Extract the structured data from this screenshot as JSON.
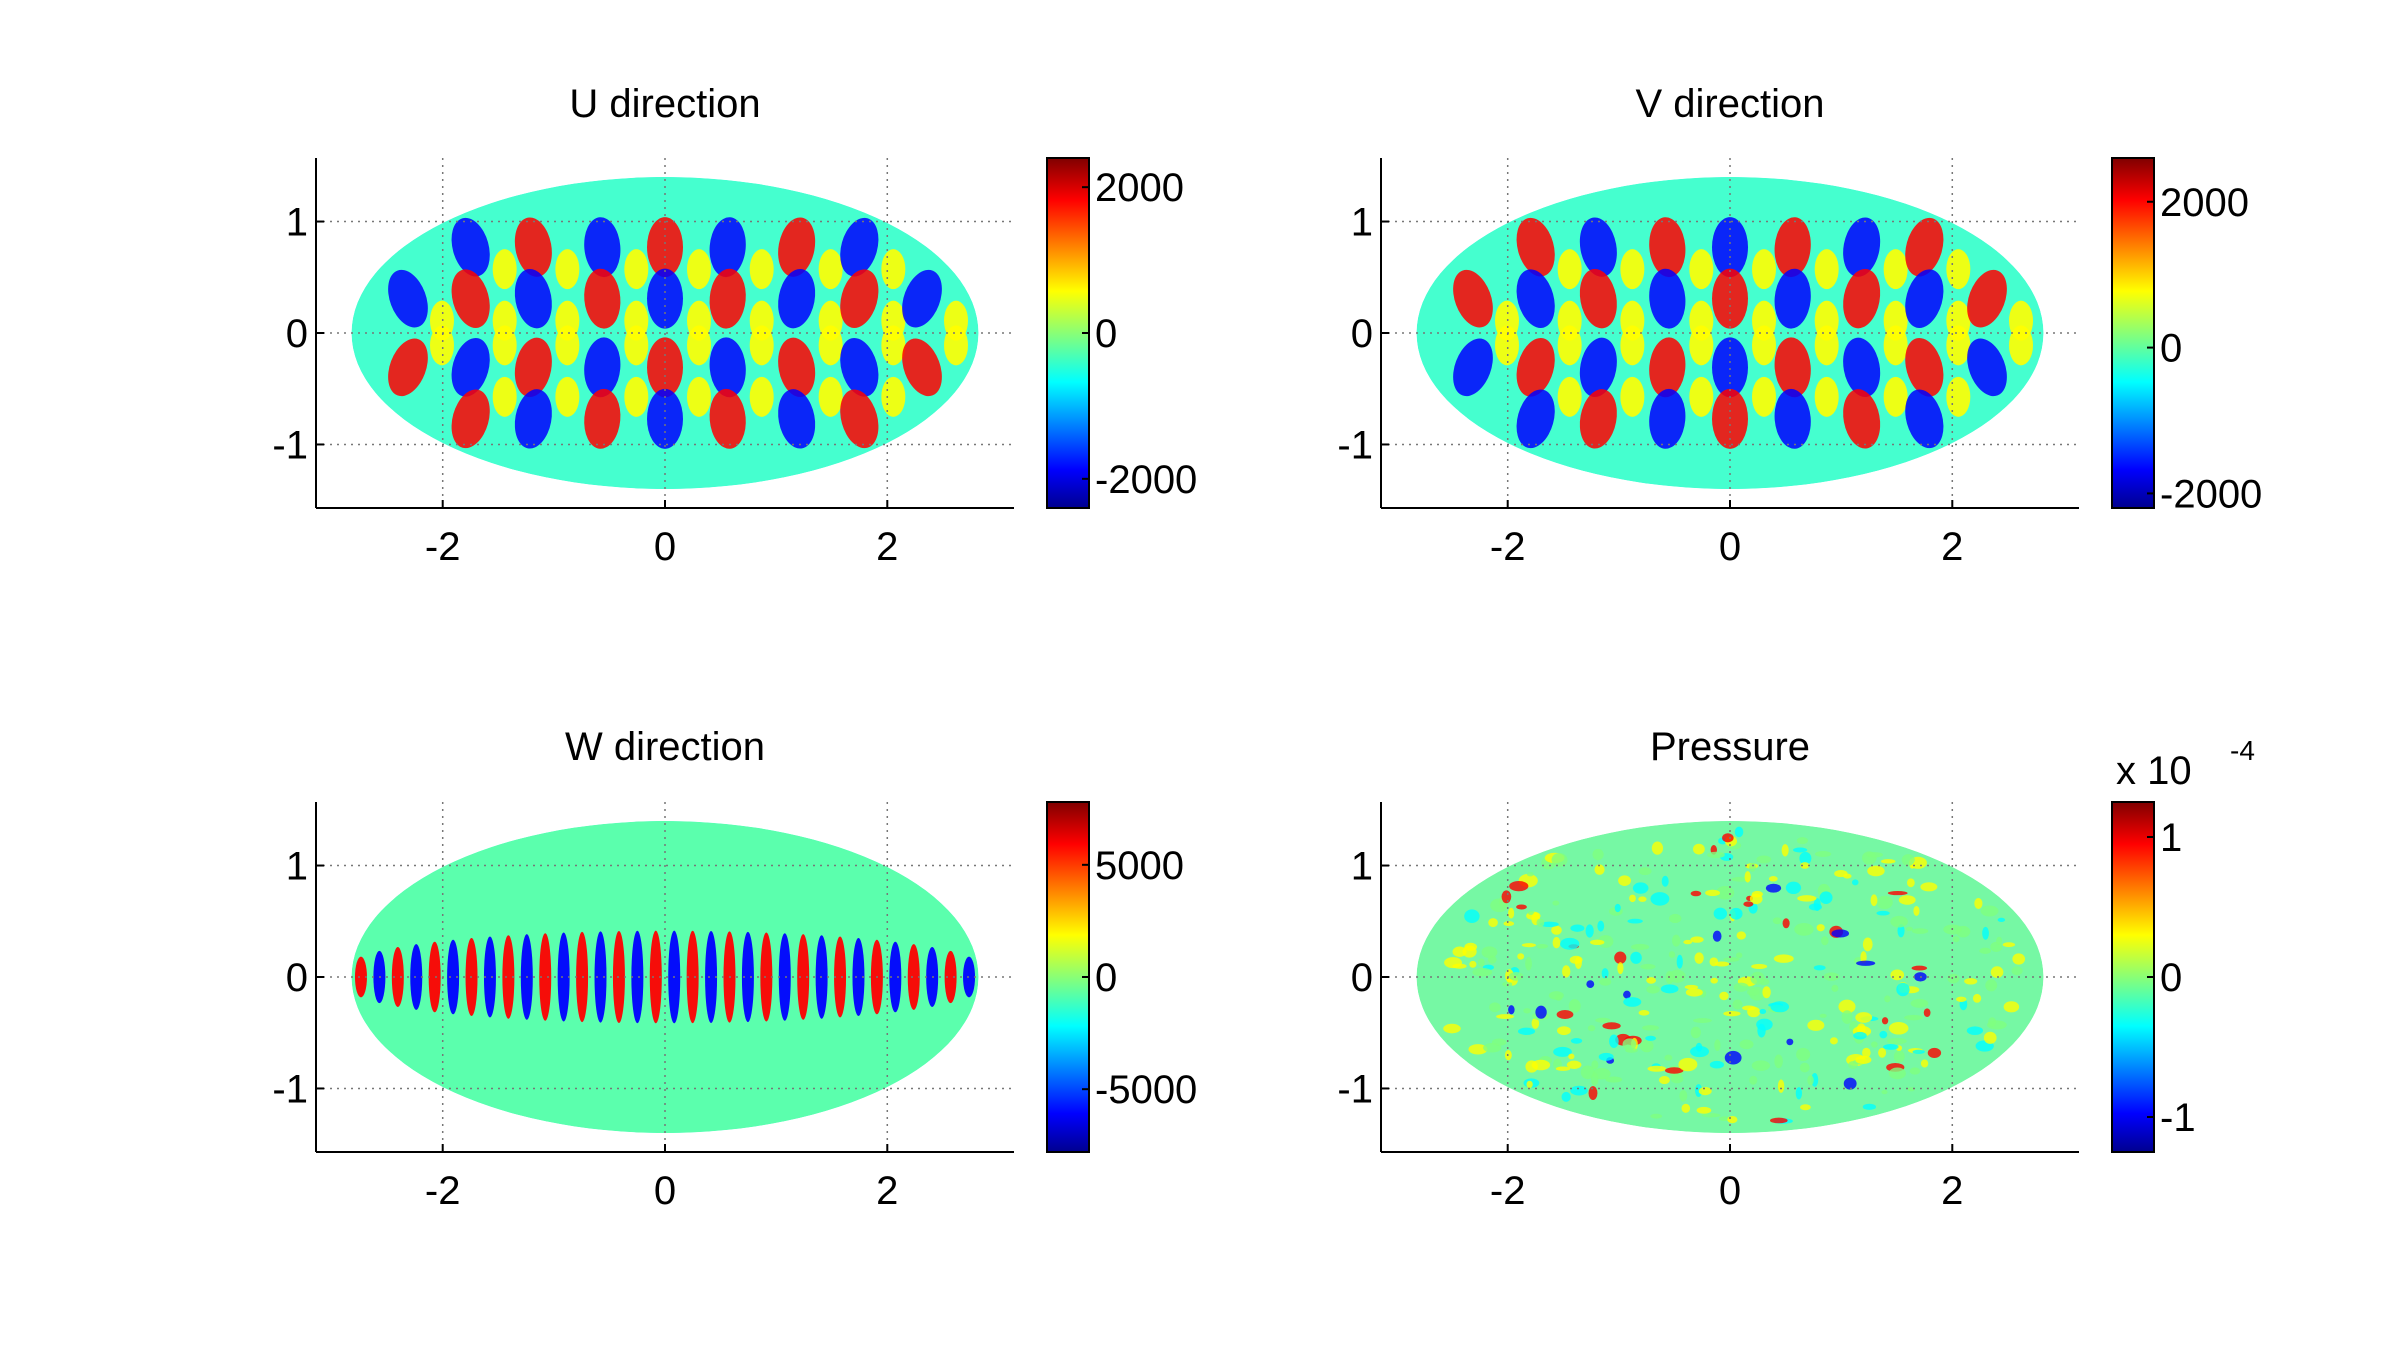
{
  "chart_data": [
    {
      "type": "heatmap",
      "title": "U direction",
      "xlabel": "",
      "ylabel": "",
      "xlim": [
        -3.14,
        3.14
      ],
      "ylim": [
        -1.57,
        1.57
      ],
      "xticks": [
        -2,
        0,
        2
      ],
      "yticks": [
        -1,
        0,
        1
      ],
      "xtick_labels": [
        "-2",
        "0",
        "2"
      ],
      "ytick_labels": [
        "-1",
        "0",
        "1"
      ],
      "grid": true,
      "projection": "Hammer-Aitoff ellipse",
      "colormap": "jet",
      "colorbar": {
        "range": [
          -2400,
          2400
        ],
        "ticks": [
          -2000,
          0,
          2000
        ],
        "tick_labels": [
          "-2000",
          "0",
          "2000"
        ],
        "exponent_label": ""
      }
    },
    {
      "type": "heatmap",
      "title": "V direction",
      "xlabel": "",
      "ylabel": "",
      "xlim": [
        -3.14,
        3.14
      ],
      "ylim": [
        -1.57,
        1.57
      ],
      "xticks": [
        -2,
        0,
        2
      ],
      "yticks": [
        -1,
        0,
        1
      ],
      "xtick_labels": [
        "-2",
        "0",
        "2"
      ],
      "ytick_labels": [
        "-1",
        "0",
        "1"
      ],
      "grid": true,
      "projection": "Hammer-Aitoff ellipse",
      "colormap": "jet",
      "colorbar": {
        "range": [
          -2200,
          2600
        ],
        "ticks": [
          -2000,
          0,
          2000
        ],
        "tick_labels": [
          "-2000",
          "0",
          "2000"
        ],
        "exponent_label": ""
      }
    },
    {
      "type": "heatmap",
      "title": "W direction",
      "xlabel": "",
      "ylabel": "",
      "xlim": [
        -3.14,
        3.14
      ],
      "ylim": [
        -1.57,
        1.57
      ],
      "xticks": [
        -2,
        0,
        2
      ],
      "yticks": [
        -1,
        0,
        1
      ],
      "xtick_labels": [
        "-2",
        "0",
        "2"
      ],
      "ytick_labels": [
        "-1",
        "0",
        "1"
      ],
      "grid": true,
      "projection": "Hammer-Aitoff ellipse",
      "colormap": "jet",
      "colorbar": {
        "range": [
          -7800,
          7800
        ],
        "ticks": [
          -5000,
          0,
          5000
        ],
        "tick_labels": [
          "-5000",
          "0",
          "5000"
        ],
        "exponent_label": ""
      }
    },
    {
      "type": "heatmap",
      "title": "Pressure",
      "xlabel": "",
      "ylabel": "",
      "xlim": [
        -3.14,
        3.14
      ],
      "ylim": [
        -1.57,
        1.57
      ],
      "xticks": [
        -2,
        0,
        2
      ],
      "yticks": [
        -1,
        0,
        1
      ],
      "xtick_labels": [
        "-2",
        "0",
        "2"
      ],
      "ytick_labels": [
        "-1",
        "0",
        "1"
      ],
      "grid": true,
      "projection": "Hammer-Aitoff ellipse",
      "colormap": "jet",
      "colorbar": {
        "range": [
          -1.25,
          1.25
        ],
        "ticks": [
          -1,
          0,
          1
        ],
        "tick_labels": [
          "-1",
          "0",
          "1"
        ],
        "exponent_label": "x 10",
        "exponent_power": "-4"
      }
    }
  ],
  "colormap_stops": [
    "#00008f",
    "#0000ff",
    "#00ffff",
    "#ffff00",
    "#ff0000",
    "#800000"
  ]
}
